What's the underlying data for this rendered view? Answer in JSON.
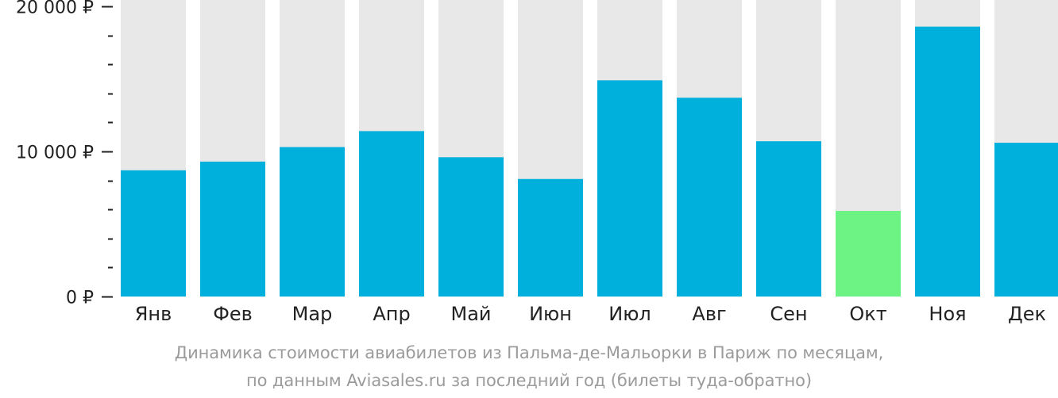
{
  "chart_data": {
    "type": "bar",
    "categories": [
      "Янв",
      "Фев",
      "Мар",
      "Апр",
      "Май",
      "Июн",
      "Июл",
      "Авг",
      "Сен",
      "Окт",
      "Ноя",
      "Дек"
    ],
    "values": [
      8700,
      9300,
      10300,
      11400,
      9600,
      8100,
      14900,
      13700,
      10700,
      5900,
      18600,
      10600
    ],
    "highlight_category": "Окт",
    "ylim": [
      0,
      20000
    ],
    "y_ticks": [
      {
        "value": 0,
        "label": "0 ₽"
      },
      {
        "value": 10000,
        "label": "10 000 ₽"
      },
      {
        "value": 20000,
        "label": "20 000 ₽"
      }
    ],
    "y_minor_step": 2000,
    "grid": false,
    "xlabel": "",
    "ylabel": "",
    "colors": {
      "bar": "#00b0dc",
      "highlight": "#6cf384",
      "background_bar": "#e8e8e8",
      "axis_text": "#222222",
      "caption": "#9b9b9b"
    }
  },
  "caption": {
    "line1": "Динамика стоимости авиабилетов из Пальма-де-Мальорки в Париж по месяцам,",
    "line2": "по данным Aviasales.ru за последний год (билеты туда-обратно)"
  }
}
